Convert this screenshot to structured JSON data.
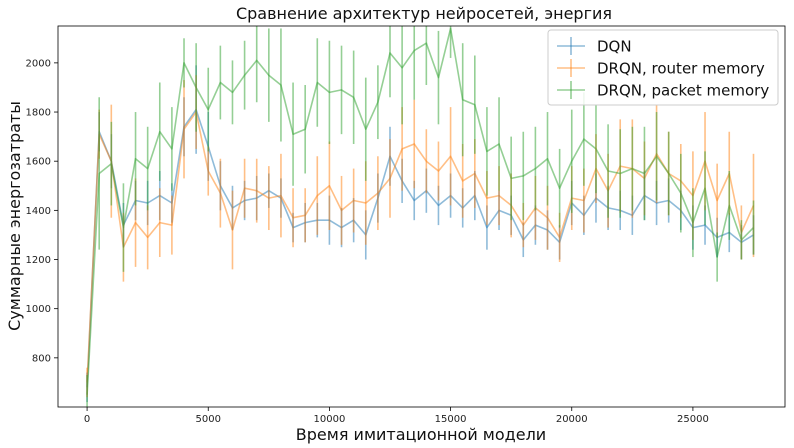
{
  "chart_data": {
    "type": "line",
    "title": "Сравнение архитектур нейросетей, энергия",
    "xlabel": "Время имитационной модели",
    "ylabel": "Суммарные энергозатраты",
    "xlim": [
      -1200,
      28800
    ],
    "ylim": [
      600,
      2150
    ],
    "xticks": [
      0,
      5000,
      10000,
      15000,
      20000,
      25000
    ],
    "yticks": [
      800,
      1000,
      1200,
      1400,
      1600,
      1800,
      2000
    ],
    "grid": false,
    "legend_position": "top-right",
    "x": [
      0,
      500,
      1000,
      1500,
      2000,
      2500,
      3000,
      3500,
      4000,
      4500,
      5000,
      5500,
      6000,
      6500,
      7000,
      7500,
      8000,
      8500,
      9000,
      9500,
      10000,
      10500,
      11000,
      11500,
      12000,
      12500,
      13000,
      13500,
      14000,
      14500,
      15000,
      15500,
      16000,
      16500,
      17000,
      17500,
      18000,
      18500,
      19000,
      19500,
      20000,
      20500,
      21000,
      21500,
      22000,
      22500,
      23000,
      23500,
      24000,
      24500,
      25000,
      25500,
      26000,
      26500,
      27000,
      27500
    ],
    "series": [
      {
        "name": "DQN",
        "color": "#1f77b4",
        "values": [
          680,
          1720,
          1600,
          1340,
          1440,
          1430,
          1460,
          1430,
          1740,
          1810,
          1660,
          1500,
          1410,
          1440,
          1450,
          1480,
          1450,
          1330,
          1350,
          1360,
          1360,
          1330,
          1360,
          1300,
          1450,
          1620,
          1520,
          1440,
          1480,
          1420,
          1460,
          1410,
          1460,
          1330,
          1400,
          1380,
          1280,
          1340,
          1320,
          1270,
          1430,
          1380,
          1450,
          1410,
          1400,
          1380,
          1460,
          1430,
          1440,
          1400,
          1330,
          1340,
          1290,
          1310,
          1270,
          1300
        ],
        "errors": [
          60,
          80,
          110,
          90,
          80,
          90,
          100,
          80,
          120,
          180,
          140,
          100,
          90,
          80,
          90,
          70,
          80,
          60,
          80,
          70,
          100,
          80,
          90,
          100,
          100,
          120,
          90,
          80,
          90,
          80,
          90,
          80,
          100,
          90,
          80,
          80,
          70,
          80,
          80,
          70,
          90,
          80,
          100,
          90,
          80,
          80,
          100,
          90,
          90,
          80,
          90,
          80,
          80,
          80,
          70,
          80
        ]
      },
      {
        "name": "DRQN, router memory",
        "color": "#ff7f0e",
        "values": [
          700,
          1710,
          1600,
          1250,
          1350,
          1290,
          1350,
          1340,
          1730,
          1800,
          1560,
          1470,
          1320,
          1490,
          1480,
          1450,
          1460,
          1370,
          1380,
          1460,
          1500,
          1400,
          1440,
          1430,
          1470,
          1530,
          1650,
          1670,
          1600,
          1560,
          1620,
          1520,
          1550,
          1450,
          1460,
          1420,
          1340,
          1410,
          1370,
          1290,
          1450,
          1440,
          1570,
          1480,
          1580,
          1570,
          1530,
          1630,
          1550,
          1520,
          1460,
          1600,
          1440,
          1550,
          1310,
          1420
        ],
        "errors": [
          60,
          100,
          230,
          140,
          180,
          130,
          140,
          120,
          200,
          150,
          100,
          140,
          160,
          120,
          130,
          130,
          170,
          120,
          110,
          160,
          180,
          140,
          130,
          170,
          150,
          160,
          170,
          180,
          130,
          120,
          200,
          150,
          140,
          110,
          120,
          130,
          90,
          130,
          130,
          100,
          130,
          130,
          140,
          150,
          190,
          200,
          150,
          200,
          170,
          150,
          180,
          200,
          150,
          170,
          110,
          210
        ]
      },
      {
        "name": "DRQN, packet memory",
        "color": "#2ca02c",
        "values": [
          650,
          1550,
          1590,
          1330,
          1610,
          1570,
          1720,
          1650,
          2000,
          1900,
          1810,
          1920,
          1880,
          1950,
          2010,
          1950,
          1910,
          1710,
          1730,
          1920,
          1880,
          1890,
          1860,
          1730,
          1840,
          2040,
          1980,
          2050,
          2080,
          1940,
          2140,
          1850,
          1830,
          1640,
          1670,
          1530,
          1540,
          1570,
          1610,
          1490,
          1600,
          1690,
          1650,
          1560,
          1550,
          1570,
          1550,
          1620,
          1550,
          1470,
          1350,
          1490,
          1210,
          1420,
          1280,
          1330
        ],
        "errors": [
          80,
          310,
          170,
          180,
          190,
          170,
          200,
          170,
          100,
          180,
          170,
          150,
          130,
          140,
          170,
          190,
          230,
          210,
          180,
          180,
          210,
          180,
          190,
          210,
          150,
          180,
          230,
          200,
          170,
          190,
          120,
          230,
          200,
          180,
          190,
          170,
          180,
          170,
          190,
          160,
          210,
          190,
          180,
          190,
          180,
          170,
          190,
          180,
          170,
          160,
          140,
          150,
          100,
          140,
          80,
          110
        ]
      }
    ]
  }
}
